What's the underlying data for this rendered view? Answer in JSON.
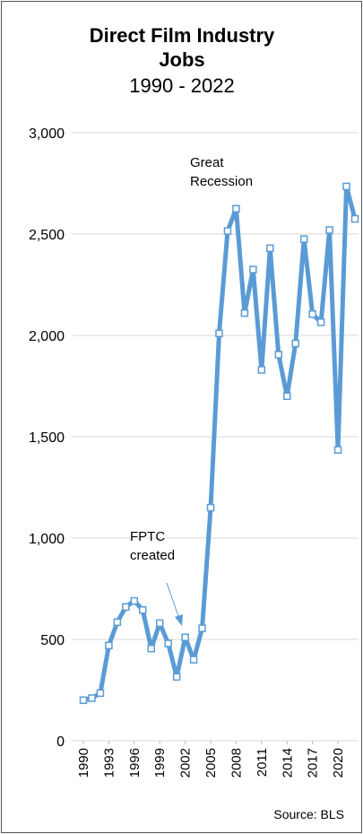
{
  "chart_data": {
    "type": "line",
    "title": [
      "Direct Film Industry",
      "Jobs"
    ],
    "subtitle": "1990 - 2022",
    "source": "Source: BLS",
    "annotations": [
      {
        "text": [
          "Great",
          "Recession"
        ]
      },
      {
        "text": [
          "FPTC",
          "created"
        ]
      }
    ],
    "x": [
      1990,
      1991,
      1992,
      1993,
      1994,
      1995,
      1996,
      1997,
      1998,
      1999,
      2000,
      2001,
      2002,
      2003,
      2004,
      2005,
      2006,
      2007,
      2008,
      2009,
      2010,
      2011,
      2012,
      2013,
      2014,
      2015,
      2016,
      2017,
      2018,
      2019,
      2020,
      2021,
      2022
    ],
    "series": [
      {
        "name": "Direct Film Industry Jobs",
        "color": "#5b9bd5",
        "values": [
          200,
          210,
          235,
          470,
          585,
          660,
          690,
          645,
          455,
          580,
          480,
          315,
          510,
          400,
          555,
          1150,
          2010,
          2515,
          2625,
          2110,
          2325,
          1830,
          2430,
          1905,
          1700,
          1960,
          2475,
          2105,
          2065,
          2520,
          1435,
          2735,
          2575
        ]
      }
    ],
    "xlim": [
      1990,
      2022
    ],
    "xticks": [
      1990,
      1993,
      1996,
      1999,
      2002,
      2005,
      2008,
      2011,
      2014,
      2017,
      2020
    ],
    "ylim": [
      0,
      3000
    ],
    "yticks": [
      0,
      500,
      {
        "value": 1000,
        "label": "1,000"
      },
      {
        "value": 1500,
        "label": "1,500"
      },
      {
        "value": 2000,
        "label": "2,000"
      },
      {
        "value": 2500,
        "label": "2,500"
      },
      {
        "value": 3000,
        "label": "3,000"
      }
    ],
    "grid": true
  }
}
